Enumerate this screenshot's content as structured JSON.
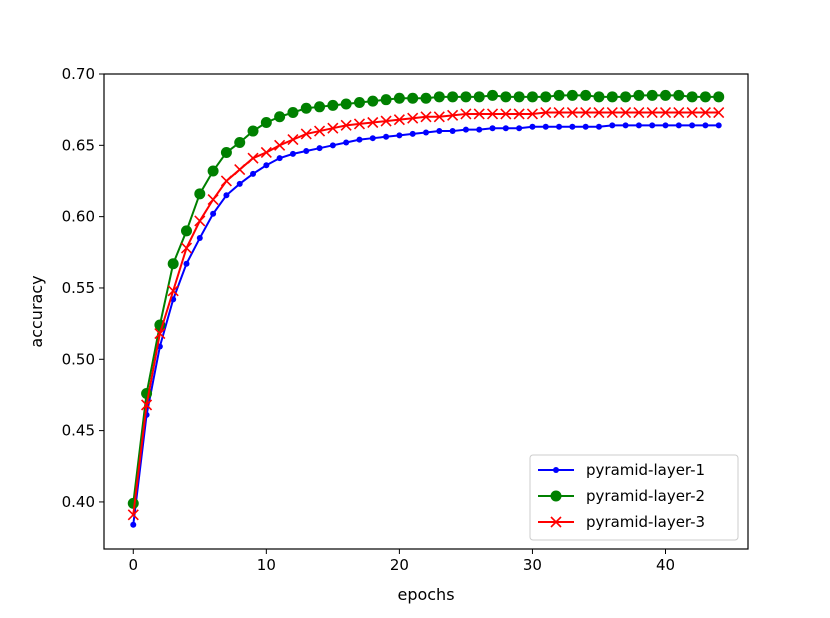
{
  "chart_data": {
    "type": "line",
    "xlabel": "epochs",
    "ylabel": "accuracy",
    "xlim": [
      -2.2,
      46.2
    ],
    "ylim": [
      0.367,
      0.7
    ],
    "xticks": [
      0,
      10,
      20,
      30,
      40
    ],
    "xtick_labels": [
      "0",
      "10",
      "20",
      "30",
      "40"
    ],
    "yticks": [
      0.4,
      0.45,
      0.5,
      0.55,
      0.6,
      0.65,
      0.7
    ],
    "ytick_labels": [
      "0.40",
      "0.45",
      "0.50",
      "0.55",
      "0.60",
      "0.65",
      "0.70"
    ],
    "grid": false,
    "legend_position": "lower-right",
    "x": [
      0,
      1,
      2,
      3,
      4,
      5,
      6,
      7,
      8,
      9,
      10,
      11,
      12,
      13,
      14,
      15,
      16,
      17,
      18,
      19,
      20,
      21,
      22,
      23,
      24,
      25,
      26,
      27,
      28,
      29,
      30,
      31,
      32,
      33,
      34,
      35,
      36,
      37,
      38,
      39,
      40,
      41,
      42,
      43,
      44
    ],
    "series": [
      {
        "name": "pyramid-layer-1",
        "color": "#0000ff",
        "marker": "dot",
        "values": [
          0.384,
          0.461,
          0.509,
          0.542,
          0.567,
          0.585,
          0.602,
          0.615,
          0.623,
          0.63,
          0.636,
          0.641,
          0.644,
          0.646,
          0.648,
          0.65,
          0.652,
          0.654,
          0.655,
          0.656,
          0.657,
          0.658,
          0.659,
          0.66,
          0.66,
          0.661,
          0.661,
          0.662,
          0.662,
          0.662,
          0.663,
          0.663,
          0.663,
          0.663,
          0.663,
          0.663,
          0.664,
          0.664,
          0.664,
          0.664,
          0.664,
          0.664,
          0.664,
          0.664,
          0.664
        ]
      },
      {
        "name": "pyramid-layer-2",
        "color": "#008000",
        "marker": "circle",
        "values": [
          0.399,
          0.476,
          0.524,
          0.567,
          0.59,
          0.616,
          0.632,
          0.645,
          0.652,
          0.66,
          0.666,
          0.67,
          0.673,
          0.676,
          0.677,
          0.678,
          0.679,
          0.68,
          0.681,
          0.682,
          0.683,
          0.683,
          0.683,
          0.684,
          0.684,
          0.684,
          0.684,
          0.685,
          0.684,
          0.684,
          0.684,
          0.684,
          0.685,
          0.685,
          0.685,
          0.684,
          0.684,
          0.684,
          0.685,
          0.685,
          0.685,
          0.685,
          0.684,
          0.684,
          0.684
        ]
      },
      {
        "name": "pyramid-layer-3",
        "color": "#ff0000",
        "marker": "x",
        "values": [
          0.391,
          0.468,
          0.518,
          0.548,
          0.578,
          0.597,
          0.612,
          0.625,
          0.633,
          0.641,
          0.645,
          0.65,
          0.654,
          0.658,
          0.66,
          0.662,
          0.664,
          0.665,
          0.666,
          0.667,
          0.668,
          0.669,
          0.67,
          0.67,
          0.671,
          0.672,
          0.672,
          0.672,
          0.672,
          0.672,
          0.672,
          0.673,
          0.673,
          0.673,
          0.673,
          0.673,
          0.673,
          0.673,
          0.673,
          0.673,
          0.673,
          0.673,
          0.673,
          0.673,
          0.673
        ]
      }
    ]
  }
}
